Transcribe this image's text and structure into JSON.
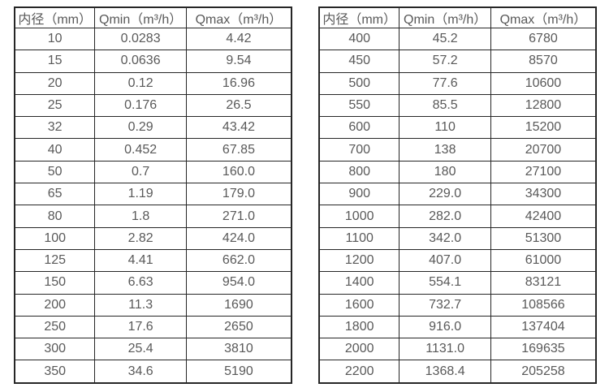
{
  "colors": {
    "border": "#262626",
    "text": "#595959",
    "background": "#ffffff"
  },
  "tables": [
    {
      "name": "flow-rate-table-small-diameters",
      "columns": [
        "内径（mm）",
        "Qmin（m³/h）",
        "Qmax（m³/h）"
      ],
      "rows": [
        [
          "10",
          "0.0283",
          "4.42"
        ],
        [
          "15",
          "0.0636",
          "9.54"
        ],
        [
          "20",
          "0.12",
          "16.96"
        ],
        [
          "25",
          "0.176",
          "26.5"
        ],
        [
          "32",
          "0.29",
          "43.42"
        ],
        [
          "40",
          "0.452",
          "67.85"
        ],
        [
          "50",
          "0.7",
          "160.0"
        ],
        [
          "65",
          "1.19",
          "179.0"
        ],
        [
          "80",
          "1.8",
          "271.0"
        ],
        [
          "100",
          "2.82",
          "424.0"
        ],
        [
          "125",
          "4.41",
          "662.0"
        ],
        [
          "150",
          "6.63",
          "954.0"
        ],
        [
          "200",
          "11.3",
          "1690"
        ],
        [
          "250",
          "17.6",
          "2650"
        ],
        [
          "300",
          "25.4",
          "3810"
        ],
        [
          "350",
          "34.6",
          "5190"
        ]
      ]
    },
    {
      "name": "flow-rate-table-large-diameters",
      "columns": [
        "内径（mm）",
        "Qmin（m³/h）",
        "Qmax（m³/h）"
      ],
      "rows": [
        [
          "400",
          "45.2",
          "6780"
        ],
        [
          "450",
          "57.2",
          "8570"
        ],
        [
          "500",
          "77.6",
          "10600"
        ],
        [
          "550",
          "85.5",
          "12800"
        ],
        [
          "600",
          "110",
          "15200"
        ],
        [
          "700",
          "138",
          "20700"
        ],
        [
          "800",
          "180",
          "27100"
        ],
        [
          "900",
          "229.0",
          "34300"
        ],
        [
          "1000",
          "282.0",
          "42400"
        ],
        [
          "1100",
          "342.0",
          "51300"
        ],
        [
          "1200",
          "407.0",
          "61000"
        ],
        [
          "1400",
          "554.1",
          "83121"
        ],
        [
          "1600",
          "732.7",
          "108566"
        ],
        [
          "1800",
          "916.0",
          "137404"
        ],
        [
          "2000",
          "1131.0",
          "169635"
        ],
        [
          "2200",
          "1368.4",
          "205258"
        ]
      ]
    }
  ]
}
